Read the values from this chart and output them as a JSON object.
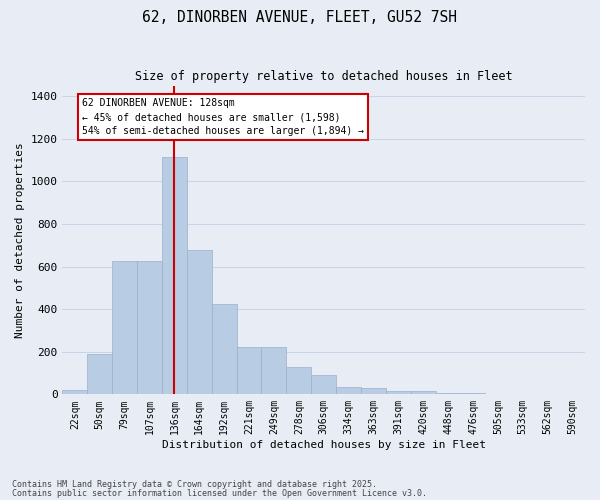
{
  "title_line1": "62, DINORBEN AVENUE, FLEET, GU52 7SH",
  "title_line2": "Size of property relative to detached houses in Fleet",
  "xlabel": "Distribution of detached houses by size in Fleet",
  "ylabel": "Number of detached properties",
  "categories": [
    "22sqm",
    "50sqm",
    "79sqm",
    "107sqm",
    "136sqm",
    "164sqm",
    "192sqm",
    "221sqm",
    "249sqm",
    "278sqm",
    "306sqm",
    "334sqm",
    "363sqm",
    "391sqm",
    "420sqm",
    "448sqm",
    "476sqm",
    "505sqm",
    "533sqm",
    "562sqm",
    "590sqm"
  ],
  "values": [
    20,
    190,
    625,
    625,
    1115,
    680,
    425,
    220,
    220,
    130,
    90,
    35,
    30,
    18,
    15,
    8,
    5,
    3,
    1,
    0,
    0
  ],
  "bar_color": "#b8cce4",
  "bar_edge_color": "#9ab0cc",
  "grid_color": "#c8d4e8",
  "bg_color": "#e8edf5",
  "vline_color": "#cc0000",
  "annotation_text": "62 DINORBEN AVENUE: 128sqm\n← 45% of detached houses are smaller (1,598)\n54% of semi-detached houses are larger (1,894) →",
  "annotation_box_facecolor": "white",
  "annotation_box_edgecolor": "#cc0000",
  "footnote1": "Contains HM Land Registry data © Crown copyright and database right 2025.",
  "footnote2": "Contains public sector information licensed under the Open Government Licence v3.0.",
  "ylim": [
    0,
    1450
  ],
  "yticks": [
    0,
    200,
    400,
    600,
    800,
    1000,
    1200,
    1400
  ],
  "vline_bar_index": 4.5
}
